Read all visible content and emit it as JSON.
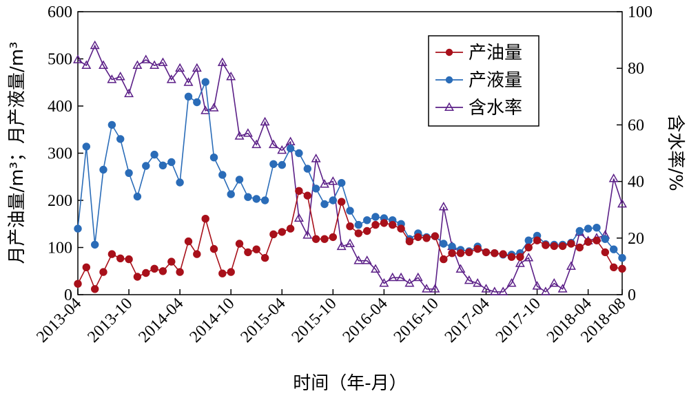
{
  "chart_data": {
    "type": "line",
    "xlabel": "时间（年-月）",
    "ylabel_left": "月产油量/m³；月产液量/m³",
    "ylabel_right": "含水率/%",
    "x_tick_labels": [
      "2013-04",
      "2013-10",
      "2014-04",
      "2014-10",
      "2015-04",
      "2015-10",
      "2016-04",
      "2016-10",
      "2017-04",
      "2017-10",
      "2018-04",
      "2018-08"
    ],
    "x_tick_month_index": [
      0,
      6,
      12,
      18,
      24,
      30,
      36,
      42,
      48,
      54,
      60,
      64
    ],
    "x_range_months": [
      0,
      64
    ],
    "ylim_left": [
      0,
      600
    ],
    "ylim_right": [
      0,
      100
    ],
    "y_ticks_left": [
      0,
      100,
      200,
      300,
      400,
      500,
      600
    ],
    "y_ticks_right": [
      0,
      20,
      40,
      60,
      80,
      100
    ],
    "legend_position": "top-right",
    "series": [
      {
        "name": "产油量",
        "axis": "left",
        "color": "#a8101a",
        "marker": "circle",
        "values": [
          23,
          58,
          12,
          48,
          86,
          77,
          75,
          38,
          46,
          55,
          50,
          70,
          48,
          113,
          86,
          161,
          97,
          45,
          48,
          108,
          90,
          96,
          78,
          128,
          133,
          140,
          220,
          210,
          118,
          118,
          122,
          197,
          145,
          130,
          135,
          148,
          152,
          148,
          140,
          113,
          122,
          120,
          124,
          75,
          88,
          88,
          90,
          97,
          90,
          88,
          86,
          80,
          80,
          100,
          115,
          105,
          103,
          103,
          108,
          100,
          112,
          115,
          90,
          58,
          55
        ]
      },
      {
        "name": "产液量",
        "axis": "left",
        "color": "#2a6cb8",
        "marker": "circle",
        "values": [
          140,
          314,
          106,
          265,
          360,
          330,
          258,
          208,
          273,
          297,
          274,
          281,
          238,
          420,
          408,
          451,
          291,
          254,
          213,
          244,
          207,
          203,
          200,
          277,
          275,
          310,
          300,
          267,
          225,
          192,
          200,
          237,
          178,
          148,
          158,
          165,
          162,
          158,
          150,
          118,
          130,
          122,
          124,
          108,
          102,
          95,
          92,
          102,
          90,
          88,
          85,
          85,
          88,
          115,
          125,
          107,
          106,
          106,
          110,
          135,
          140,
          142,
          118,
          96,
          78
        ]
      },
      {
        "name": "含水率",
        "axis": "right",
        "color": "#5b1f87",
        "marker": "triangle-open",
        "values": [
          83,
          81,
          88,
          81,
          76,
          77,
          71,
          81,
          83,
          81,
          82,
          76,
          80,
          75,
          80,
          65,
          66,
          82,
          77,
          56,
          57,
          53,
          61,
          53,
          51,
          54,
          27,
          21,
          48,
          39,
          40,
          17,
          18,
          12,
          12,
          9,
          4,
          6,
          6,
          4,
          6,
          2,
          2,
          31,
          17,
          9,
          5,
          4,
          2,
          1,
          1,
          4,
          11,
          13,
          3,
          1,
          4,
          2,
          10,
          22,
          19,
          20,
          21,
          41,
          32
        ]
      }
    ]
  }
}
